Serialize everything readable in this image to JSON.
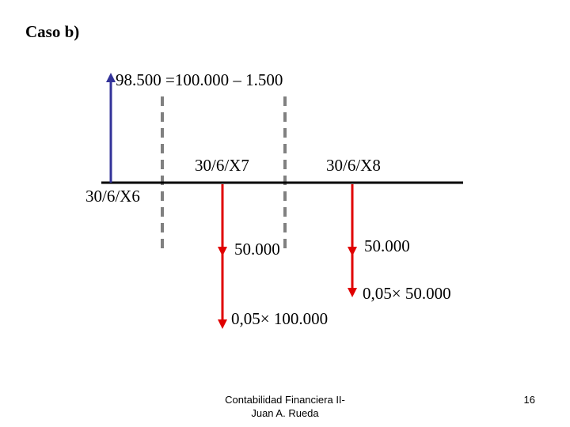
{
  "title": "Caso b)",
  "inflow_label": "98.500 =100.000 – 1.500",
  "dates": [
    "30/6/X6",
    "30/6/X7",
    "30/6/X8"
  ],
  "outflows": [
    {
      "label": "50.000",
      "interest": "0,05× 100.000"
    },
    {
      "label": "50.000",
      "interest": "0,05× 50.000"
    }
  ],
  "footer": {
    "line1": "Contabilidad Financiera II-",
    "line2": "Juan A. Rueda",
    "page": "16"
  }
}
